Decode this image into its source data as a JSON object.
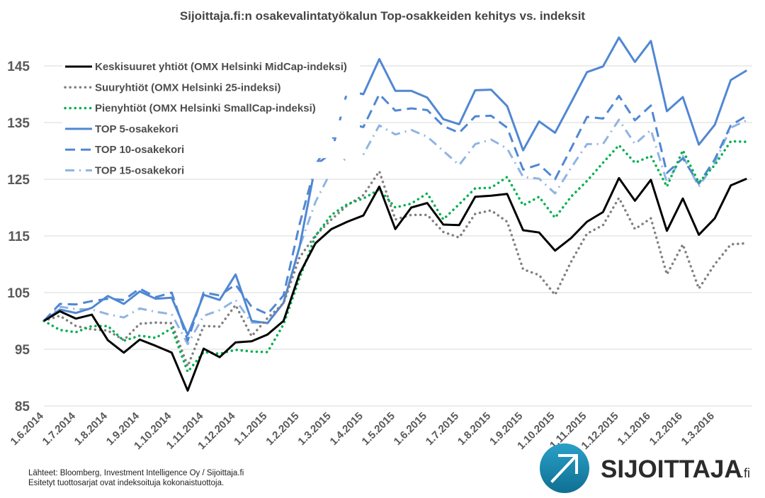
{
  "chart_data": {
    "type": "line",
    "title": "Sijoittaja.fi:n osakevalintatyökalun Top-osakkeiden kehitys vs. indeksit",
    "xlabel": "",
    "ylabel": "",
    "x_tick_labels": [
      "1.6.2014",
      "1.7.2014",
      "1.8.2014",
      "1.9.2014",
      "1.10.2014",
      "1.11.2014",
      "1.12.2014",
      "1.1.2015",
      "1.2.2015",
      "1.3.2015",
      "1.4.2015",
      "1.5.2015",
      "1.6.2015",
      "1.7.2015",
      "1.8.2015",
      "1.9.2015",
      "1.10.2015",
      "1.11.2015",
      "1.12.2015",
      "1.1.2016",
      "1.2.2016",
      "1.3.2016"
    ],
    "y_ticks": [
      85,
      95,
      105,
      115,
      125,
      135,
      145
    ],
    "ylim": [
      85,
      150
    ],
    "grid": "horizontal",
    "legend_position": "top-left",
    "series": [
      {
        "name": "Keskisuuret yhtiöt (OMX Helsinki MidCap-indeksi)",
        "color": "#000000",
        "style": "solid",
        "values": [
          100,
          101.7,
          100.4,
          101.1,
          96.6,
          94.4,
          96.7,
          95.6,
          94.4,
          87.7,
          95.1,
          93.6,
          96.2,
          96.4,
          97.6,
          100,
          108.3,
          113.7,
          116.2,
          117.5,
          118.6,
          123.7,
          116.2,
          120,
          120.8,
          117,
          116.9,
          121.9,
          122.1,
          122.4,
          116,
          115.6,
          112.4,
          114.6,
          117.5,
          119.2,
          125.2,
          121.2,
          124.9,
          115.9,
          121.6,
          115.2,
          118.1,
          123.9,
          125.1
        ]
      },
      {
        "name": "Suuryhtiöt (OMX Helsinki 25-indeksi)",
        "color": "#808080",
        "style": "dotted",
        "values": [
          100,
          100.9,
          99.1,
          98.5,
          98.3,
          96.6,
          99.5,
          99.7,
          99.6,
          92,
          99.1,
          99,
          102.8,
          97.3,
          100.5,
          103.1,
          111.2,
          115.1,
          117.9,
          120.4,
          122.2,
          126.4,
          117.9,
          118.7,
          118.7,
          115.7,
          114.7,
          118.9,
          119.5,
          117.5,
          109.1,
          108.1,
          104.6,
          110.4,
          115.4,
          116.9,
          121.7,
          116.2,
          118.1,
          108.2,
          113.5,
          105.7,
          110,
          113.5,
          113.7
        ]
      },
      {
        "name": "Pienyhtiöt (OMX Helsinki SmallCap-indeksi)",
        "color": "#00b050",
        "style": "dotted",
        "values": [
          100,
          98.4,
          98,
          99.1,
          99.1,
          96.5,
          97.4,
          97,
          98.7,
          91,
          94.5,
          94.2,
          94.9,
          94.6,
          94.5,
          99.4,
          107.5,
          115,
          118.7,
          120.6,
          121.6,
          123.2,
          120,
          120.7,
          122.5,
          117.9,
          120.6,
          123.4,
          123.5,
          125.4,
          120.4,
          121.9,
          118.2,
          121.9,
          124.7,
          127.9,
          131,
          127.9,
          129.1,
          123.7,
          130.1,
          124.4,
          127.5,
          131.7,
          131.6
        ]
      },
      {
        "name": "TOP 5-osakekori",
        "color": "#5087d3",
        "style": "solid",
        "values": [
          100,
          102,
          101.4,
          102.3,
          104.4,
          103,
          105.2,
          103.9,
          104.1,
          97.5,
          104.6,
          103.7,
          108.2,
          100,
          99.6,
          103.2,
          113,
          127.5,
          129.6,
          140.6,
          140,
          146.2,
          140.6,
          140.6,
          139.4,
          135.6,
          134.7,
          140.7,
          140.8,
          137.9,
          130.1,
          135.2,
          133.2,
          138.5,
          143.9,
          144.9,
          150,
          145.7,
          149.4,
          137,
          139.5,
          131.1,
          134.6,
          142.5,
          144.2
        ]
      },
      {
        "name": "TOP 10-osakekori",
        "color": "#5087d3",
        "style": "dashed",
        "values": [
          100,
          103,
          102.9,
          103.5,
          103.9,
          103.7,
          105.7,
          104.2,
          105,
          96.5,
          105,
          104.5,
          106.4,
          102.5,
          101.2,
          104.5,
          117,
          127.5,
          132,
          134.9,
          134.2,
          140,
          137.1,
          137.5,
          137.2,
          134.4,
          133.2,
          136.1,
          136.2,
          134.1,
          126.7,
          127.6,
          125,
          130.4,
          136,
          135.7,
          139.7,
          135.4,
          138,
          126.1,
          128.7,
          124.2,
          128.5,
          134.5,
          136.2
        ]
      },
      {
        "name": "TOP 15-osakekori",
        "color": "#8fb4e3",
        "style": "dashdot",
        "values": [
          100,
          102.5,
          102.1,
          102,
          101.2,
          100.6,
          102.2,
          101.6,
          101.2,
          95.9,
          100.9,
          101.9,
          103.7,
          99.7,
          99.7,
          103.2,
          113,
          121,
          126.5,
          128.9,
          129.4,
          134.5,
          132.9,
          133.7,
          132.5,
          130,
          127.5,
          131.2,
          132,
          130.4,
          125.4,
          125.1,
          122.5,
          127,
          131.2,
          131.2,
          135.5,
          131.2,
          133.7,
          124.5,
          129.1,
          123.7,
          127.9,
          134.1,
          135.4
        ]
      }
    ]
  },
  "footer": {
    "line1": "Lähteet: Bloomberg, Investment Intelligence Oy / Sijoittaja.fi",
    "line2": "Esitetyt tuottosarjat ovat indeksoituja kokonaistuottoja."
  },
  "logo": {
    "text": "SIJOITTAJA",
    "suffix": ".fi",
    "color": "#1a88ae",
    "icon": "arrow-up-right-icon"
  }
}
